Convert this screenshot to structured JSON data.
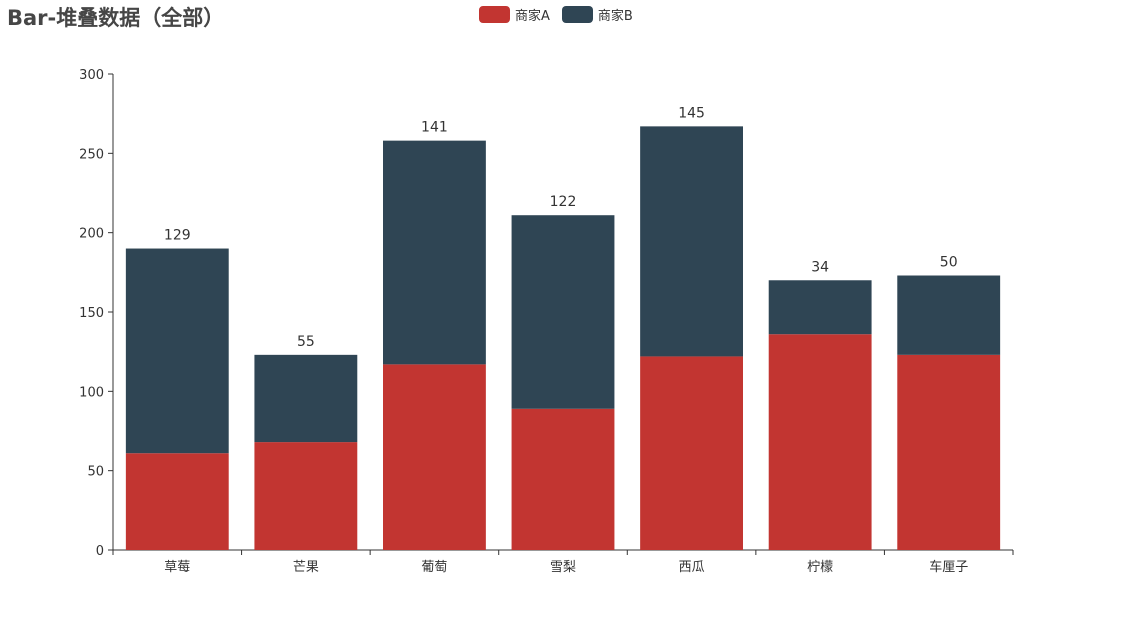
{
  "chart_data": {
    "type": "bar",
    "stacked": true,
    "title": "Bar-堆叠数据（全部）",
    "categories": [
      "草莓",
      "芒果",
      "葡萄",
      "雪梨",
      "西瓜",
      "柠檬",
      "车厘子"
    ],
    "series": [
      {
        "name": "商家A",
        "color": "#c23531",
        "values": [
          61,
          68,
          117,
          89,
          122,
          136,
          123
        ]
      },
      {
        "name": "商家B",
        "color": "#2f4554",
        "values": [
          129,
          55,
          141,
          122,
          145,
          34,
          50
        ]
      }
    ],
    "data_labels_series": "商家B",
    "ylim": [
      0,
      300
    ],
    "yticks": [
      0,
      50,
      100,
      150,
      200,
      250,
      300
    ],
    "xlabel": "",
    "ylabel": "",
    "legend_position": "top-center",
    "grid": false
  }
}
